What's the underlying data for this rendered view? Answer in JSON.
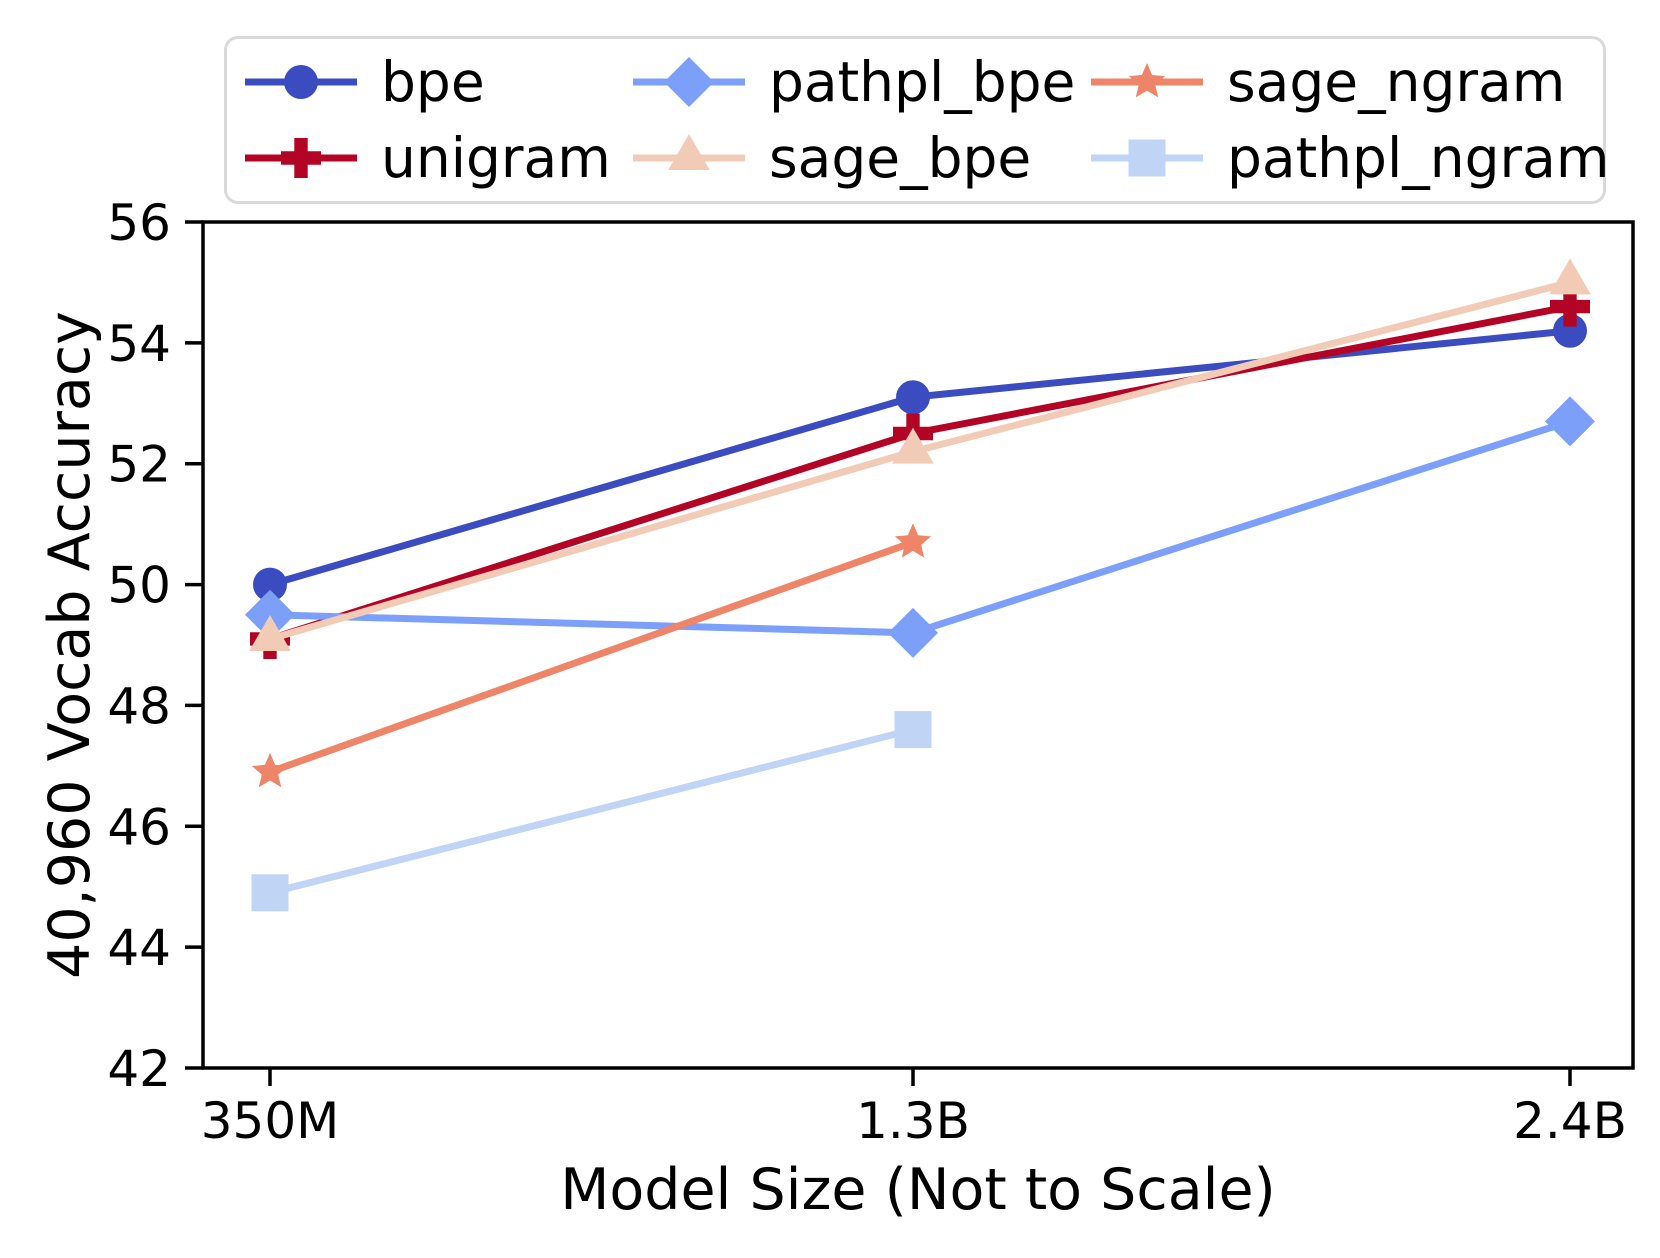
{
  "chart_data": {
    "type": "line",
    "title": "",
    "xlabel": "Model Size (Not to Scale)",
    "ylabel": "40,960 Vocab Accuracy",
    "categories": [
      "350M",
      "1.3B",
      "2.4B"
    ],
    "ylim": [
      42,
      56
    ],
    "yticks": [
      42,
      44,
      46,
      48,
      50,
      52,
      54,
      56
    ],
    "grid": false,
    "legend_position": "upper center, 2 rows x 3 columns",
    "legend_border_color": "#d9d9d9",
    "axis_color": "#000000",
    "series": [
      {
        "name": "bpe",
        "color": "#3b4cc0",
        "marker": "circle",
        "values": [
          50.0,
          53.1,
          54.2
        ]
      },
      {
        "name": "unigram",
        "color": "#b40426",
        "marker": "plus",
        "values": [
          49.1,
          52.5,
          54.6
        ]
      },
      {
        "name": "pathpl_bpe",
        "color": "#7c9ff9",
        "marker": "diamond",
        "values": [
          49.5,
          49.2,
          52.7
        ]
      },
      {
        "name": "sage_bpe",
        "color": "#f2cbb7",
        "marker": "triangle",
        "values": [
          49.1,
          52.2,
          55.0
        ]
      },
      {
        "name": "sage_ngram",
        "color": "#ee8468",
        "marker": "star",
        "values": [
          46.9,
          50.7,
          null
        ]
      },
      {
        "name": "pathpl_ngram",
        "color": "#c0d4f5",
        "marker": "square",
        "values": [
          44.9,
          47.6,
          null
        ]
      }
    ],
    "legend_display_order": [
      0,
      2,
      4,
      1,
      3,
      5
    ]
  }
}
